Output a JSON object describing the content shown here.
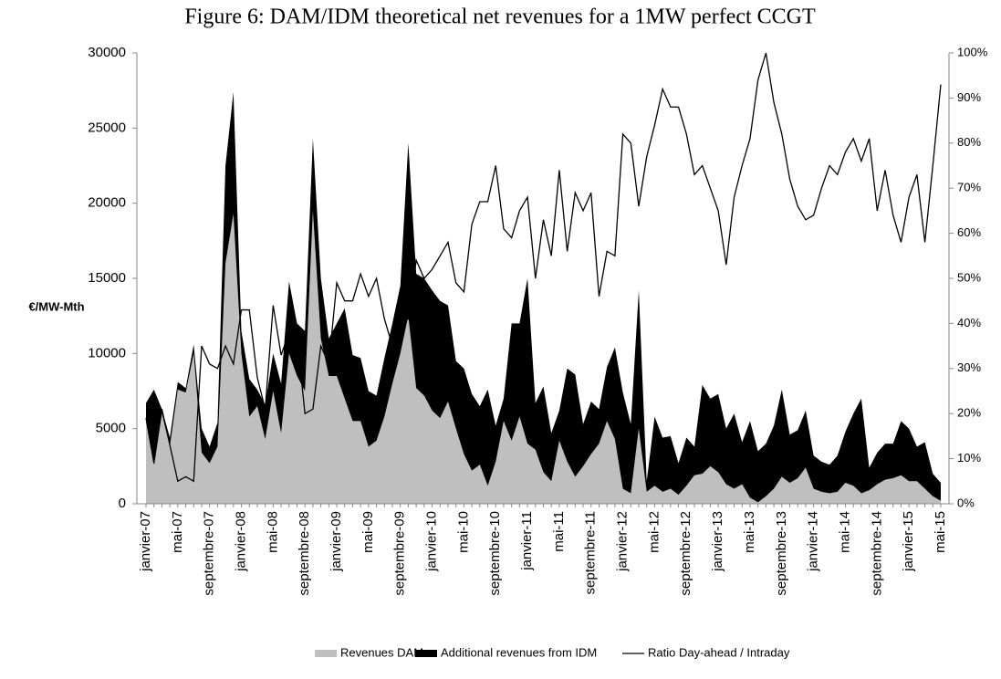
{
  "chart_data": {
    "type": "area",
    "title": "Figure 6: DAM/IDM theoretical net revenues for a 1MW perfect CCGT",
    "y_label": "€/MW-Mth",
    "categories": [
      "janvier-07",
      null,
      null,
      null,
      "mai-07",
      null,
      null,
      null,
      "septembre-07",
      null,
      null,
      null,
      "janvier-08",
      null,
      null,
      null,
      "mai-08",
      null,
      null,
      null,
      "septembre-08",
      null,
      null,
      null,
      "janvier-09",
      null,
      null,
      null,
      "mai-09",
      null,
      null,
      null,
      "septembre-09",
      null,
      null,
      null,
      "janvier-10",
      null,
      null,
      null,
      "mai-10",
      null,
      null,
      null,
      "septembre-10",
      null,
      null,
      null,
      "janvier-11",
      null,
      null,
      null,
      "mai-11",
      null,
      null,
      null,
      "septembre-11",
      null,
      null,
      null,
      "janvier-12",
      null,
      null,
      null,
      "mai-12",
      null,
      null,
      null,
      "septembre-12",
      null,
      null,
      null,
      "janvier-13",
      null,
      null,
      null,
      "mai-13",
      null,
      null,
      null,
      "septembre-13",
      null,
      null,
      null,
      "janvier-14",
      null,
      null,
      null,
      "mai-14",
      null,
      null,
      null,
      "septembre-14",
      null,
      null,
      null,
      "janvier-15",
      null,
      null,
      null,
      "mai-15"
    ],
    "stacked": true,
    "series": [
      {
        "name": "Revenues DAM",
        "type": "area",
        "color": "#bfbfbf",
        "values": [
          5600,
          2600,
          6000,
          3800,
          7600,
          7400,
          10000,
          3400,
          2700,
          3800,
          16000,
          19300,
          10000,
          5800,
          6500,
          4300,
          7500,
          4700,
          10000,
          8500,
          7500,
          19500,
          11000,
          8500,
          8500,
          7000,
          5500,
          5500,
          3800,
          4200,
          5800,
          8000,
          10000,
          12500,
          7700,
          7200,
          6200,
          5700,
          6800,
          5000,
          3300,
          2200,
          2600,
          1200,
          2800,
          5500,
          4200,
          5800,
          4000,
          3600,
          2100,
          1500,
          4200,
          2800,
          1800,
          2500,
          3300,
          4000,
          5500,
          4300,
          1000,
          700,
          5000,
          800,
          1200,
          800,
          1000,
          600,
          1200,
          1900,
          2000,
          2500,
          2100,
          1300,
          1000,
          1300,
          400,
          100,
          500,
          1000,
          1800,
          1400,
          1700,
          2400,
          1000,
          800,
          700,
          800,
          1400,
          1200,
          700,
          900,
          1300,
          1600,
          1700,
          1900,
          1500,
          1500,
          1000,
          500,
          200
        ]
      },
      {
        "name": "Additional revenues from IDM",
        "type": "area",
        "color": "#000000",
        "values": [
          1100,
          5000,
          300,
          600,
          500,
          300,
          600,
          1600,
          1100,
          1600,
          6500,
          8100,
          1500,
          2500,
          1100,
          2300,
          2500,
          3300,
          4800,
          3500,
          4000,
          4800,
          4000,
          2500,
          3500,
          6000,
          4400,
          4200,
          3700,
          3000,
          3900,
          4000,
          4500,
          11500,
          7600,
          7800,
          8000,
          7800,
          6400,
          4500,
          5700,
          5100,
          3900,
          6400,
          2400,
          1500,
          7800,
          6200,
          11000,
          3100,
          5700,
          3200,
          2000,
          6200,
          6800,
          2800,
          3500,
          2300,
          3600,
          6100,
          6400,
          4600,
          9200,
          700,
          4600,
          3600,
          3500,
          2100,
          3200,
          1900,
          5900,
          4500,
          5200,
          3700,
          5000,
          2800,
          5100,
          3400,
          3500,
          4200,
          5800,
          3200,
          3200,
          3800,
          2200,
          2000,
          1900,
          2400,
          3400,
          4800,
          6300,
          1500,
          2100,
          2400,
          2300,
          3600,
          3500,
          2300,
          3100,
          1500,
          1200
        ]
      },
      {
        "name": "Ratio Day-ahead / Intraday",
        "type": "line",
        "axis": "y2",
        "color": "#000000",
        "values": [
          19,
          9,
          21,
          13,
          5,
          6,
          5,
          35,
          31,
          30,
          35,
          31,
          43,
          43,
          28,
          21,
          44,
          33,
          38,
          37,
          20,
          21,
          35,
          31,
          49,
          45,
          45,
          51,
          46,
          50,
          41,
          35,
          40,
          41,
          54,
          50,
          52,
          55,
          58,
          49,
          47,
          62,
          67,
          67,
          75,
          61,
          59,
          65,
          68,
          50,
          63,
          55,
          74,
          56,
          69,
          65,
          69,
          46,
          56,
          55,
          82,
          80,
          66,
          77,
          84,
          92,
          88,
          88,
          82,
          73,
          75,
          70,
          65,
          53,
          68,
          75,
          81,
          94,
          100,
          89,
          82,
          72,
          66,
          63,
          64,
          70,
          75,
          73,
          78,
          81,
          76,
          81,
          65,
          74,
          64,
          58,
          68,
          73,
          58,
          75,
          93
        ]
      }
    ],
    "ylim": [
      0,
      30000
    ],
    "yticks": [
      0,
      5000,
      10000,
      15000,
      20000,
      25000,
      30000
    ],
    "y2lim": [
      0,
      100
    ],
    "y2ticks": [
      {
        "value": 0,
        "label": "0%"
      },
      {
        "value": 10,
        "label": "10%"
      },
      {
        "value": 20,
        "label": "20%"
      },
      {
        "value": 30,
        "label": "30%"
      },
      {
        "value": 40,
        "label": "40%"
      },
      {
        "value": 50,
        "label": "50%"
      },
      {
        "value": 60,
        "label": "60%"
      },
      {
        "value": 70,
        "label": "70%"
      },
      {
        "value": 80,
        "label": "80%"
      },
      {
        "value": 90,
        "label": "90%"
      },
      {
        "value": 100,
        "label": "100%"
      }
    ],
    "grid": false,
    "legend": "bottom"
  }
}
